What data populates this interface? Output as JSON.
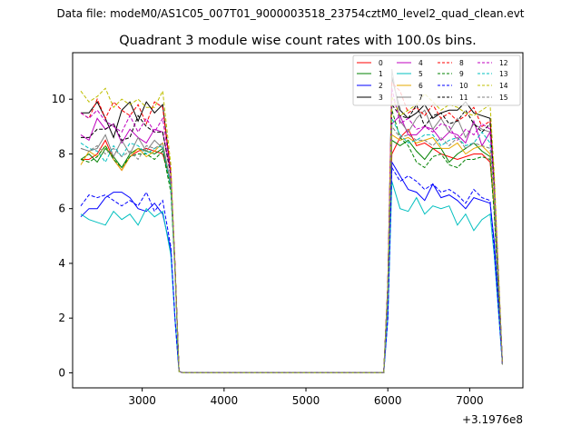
{
  "figure": {
    "suptitle": "Data file: modeM0/AS1C05_007T01_9000003518_23754cztM0_level2_quad_clean.evt",
    "title": "Quadrant 3 module wise count rates with 100.0s bins.",
    "x_offset_label": "+3.1976e8"
  },
  "chart_data": {
    "type": "line",
    "title": "Quadrant 3 module wise count rates with 100.0s bins.",
    "xlabel": "",
    "ylabel": "",
    "x_offset": 319760000,
    "xlim": [
      2150,
      7650
    ],
    "ylim": [
      -0.55,
      11.7
    ],
    "xticks": [
      3000,
      4000,
      5000,
      6000,
      7000
    ],
    "yticks": [
      0,
      2,
      4,
      6,
      8,
      10
    ],
    "grid": false,
    "legend": {
      "position": "top-right",
      "columns": 4
    },
    "x": [
      2250,
      2350,
      2450,
      2550,
      2650,
      2750,
      2850,
      2950,
      3050,
      3150,
      3250,
      3350,
      3400,
      3450,
      3500,
      5950,
      6000,
      6050,
      6150,
      6250,
      6350,
      6450,
      6550,
      6650,
      6750,
      6850,
      6950,
      7050,
      7150,
      7250,
      7300,
      7400
    ],
    "series": [
      {
        "name": "0",
        "color": "#ff0000",
        "dash": "solid",
        "values": [
          7.8,
          7.8,
          8.0,
          8.5,
          7.8,
          7.4,
          7.9,
          8.1,
          8.2,
          8.1,
          8.0,
          7.0,
          4.0,
          0.05,
          0.0,
          0.0,
          3.0,
          8.0,
          8.6,
          8.9,
          8.3,
          8.4,
          8.2,
          8.0,
          7.9,
          7.8,
          7.9,
          8.0,
          8.0,
          7.7,
          6.0,
          0.3
        ]
      },
      {
        "name": "1",
        "color": "#008000",
        "dash": "solid",
        "values": [
          7.8,
          8.0,
          7.7,
          8.2,
          7.9,
          7.5,
          8.0,
          8.2,
          8.1,
          8.0,
          8.2,
          6.8,
          4.0,
          0.05,
          0.0,
          0.0,
          3.0,
          8.5,
          8.3,
          8.5,
          8.1,
          7.8,
          8.2,
          8.2,
          7.7,
          8.0,
          8.2,
          8.4,
          8.1,
          7.9,
          6.0,
          0.3
        ]
      },
      {
        "name": "2",
        "color": "#0000ff",
        "dash": "solid",
        "values": [
          5.7,
          6.0,
          6.0,
          6.4,
          6.6,
          6.6,
          6.4,
          6.0,
          5.9,
          6.2,
          5.8,
          4.5,
          2.0,
          0.05,
          0.0,
          0.0,
          2.0,
          7.7,
          7.2,
          6.7,
          6.6,
          6.3,
          6.9,
          6.4,
          6.5,
          6.3,
          6.0,
          6.4,
          6.3,
          6.2,
          4.8,
          0.3
        ]
      },
      {
        "name": "3",
        "color": "#000000",
        "dash": "solid",
        "values": [
          9.5,
          9.5,
          9.9,
          9.3,
          8.6,
          9.6,
          9.9,
          9.2,
          9.9,
          9.5,
          9.8,
          7.3,
          4.0,
          0.05,
          0.0,
          0.0,
          3.2,
          10.8,
          9.6,
          9.3,
          9.5,
          9.8,
          9.3,
          9.5,
          9.6,
          9.6,
          9.9,
          9.5,
          9.4,
          9.3,
          7.0,
          0.3
        ]
      },
      {
        "name": "4",
        "color": "#bf00bf",
        "dash": "solid",
        "values": [
          8.7,
          8.5,
          9.3,
          8.9,
          9.1,
          8.4,
          8.9,
          8.6,
          8.4,
          8.9,
          8.8,
          7.3,
          3.8,
          0.05,
          0.0,
          0.0,
          3.0,
          9.1,
          9.4,
          8.7,
          8.7,
          9.0,
          8.9,
          8.5,
          8.8,
          8.7,
          8.4,
          9.2,
          8.3,
          8.8,
          6.8,
          0.3
        ]
      },
      {
        "name": "5",
        "color": "#00bfbf",
        "dash": "solid",
        "values": [
          5.8,
          5.6,
          5.5,
          5.4,
          5.9,
          5.6,
          5.8,
          5.4,
          6.0,
          5.7,
          5.9,
          4.3,
          2.0,
          0.05,
          0.0,
          0.0,
          2.0,
          7.0,
          6.0,
          5.9,
          6.4,
          5.8,
          6.1,
          6.0,
          6.1,
          5.4,
          5.8,
          5.2,
          5.6,
          5.8,
          4.3,
          0.3
        ]
      },
      {
        "name": "6",
        "color": "#e6a800",
        "dash": "solid",
        "values": [
          7.6,
          8.1,
          7.9,
          8.3,
          7.8,
          7.4,
          7.9,
          8.2,
          7.9,
          8.1,
          8.4,
          6.9,
          3.8,
          0.05,
          0.0,
          0.0,
          3.0,
          8.7,
          8.5,
          8.6,
          8.4,
          8.5,
          8.6,
          8.2,
          8.2,
          8.4,
          8.0,
          8.2,
          8.3,
          8.0,
          6.1,
          0.3
        ]
      },
      {
        "name": "7",
        "color": "#808080",
        "dash": "solid",
        "values": [
          8.2,
          8.1,
          8.2,
          8.7,
          7.9,
          8.5,
          8.0,
          8.6,
          8.1,
          8.5,
          8.2,
          7.0,
          3.9,
          0.05,
          0.0,
          0.0,
          3.0,
          11.1,
          9.2,
          8.8,
          9.3,
          9.6,
          8.9,
          9.3,
          8.8,
          9.3,
          8.6,
          9.1,
          8.9,
          8.8,
          6.8,
          0.3
        ]
      },
      {
        "name": "8",
        "color": "#ff0000",
        "dash": "dashed",
        "values": [
          9.5,
          9.3,
          10.0,
          9.3,
          9.9,
          9.6,
          9.4,
          9.8,
          9.1,
          9.9,
          9.7,
          7.3,
          4.0,
          0.05,
          0.0,
          0.0,
          3.2,
          10.6,
          10.3,
          9.5,
          9.7,
          9.4,
          9.8,
          9.3,
          9.5,
          9.2,
          9.4,
          9.7,
          9.0,
          9.2,
          6.8,
          0.3
        ]
      },
      {
        "name": "9",
        "color": "#008000",
        "dash": "dashed",
        "values": [
          7.8,
          7.7,
          7.9,
          8.3,
          7.8,
          7.5,
          7.9,
          8.0,
          8.0,
          7.8,
          8.1,
          6.6,
          3.8,
          0.05,
          0.0,
          0.0,
          3.0,
          9.6,
          8.6,
          8.3,
          7.7,
          7.5,
          7.9,
          8.0,
          7.6,
          7.5,
          7.8,
          7.8,
          7.9,
          7.8,
          5.8,
          0.3
        ]
      },
      {
        "name": "10",
        "color": "#0000ff",
        "dash": "dashed",
        "values": [
          6.1,
          6.5,
          6.4,
          6.5,
          6.3,
          6.1,
          6.3,
          6.1,
          6.6,
          5.9,
          6.3,
          4.6,
          2.0,
          0.05,
          0.0,
          0.0,
          2.0,
          7.5,
          7.0,
          7.2,
          7.0,
          6.7,
          6.9,
          6.6,
          6.7,
          6.5,
          6.2,
          6.7,
          6.4,
          6.3,
          4.5,
          0.3
        ]
      },
      {
        "name": "11",
        "color": "#000000",
        "dash": "dashed",
        "values": [
          8.6,
          8.6,
          8.9,
          8.9,
          9.1,
          8.5,
          8.6,
          9.4,
          9.0,
          8.8,
          8.8,
          7.2,
          3.9,
          0.05,
          0.0,
          0.0,
          3.2,
          9.8,
          9.4,
          9.3,
          9.8,
          9.0,
          9.4,
          9.5,
          9.1,
          9.2,
          9.6,
          9.1,
          8.8,
          9.1,
          7.0,
          0.3
        ]
      },
      {
        "name": "12",
        "color": "#bf00bf",
        "dash": "dashed",
        "values": [
          9.5,
          9.3,
          9.6,
          9.2,
          9.0,
          8.8,
          9.4,
          8.8,
          9.3,
          8.8,
          9.3,
          7.3,
          4.0,
          0.05,
          0.0,
          0.0,
          3.2,
          10.4,
          9.1,
          9.3,
          8.9,
          9.0,
          8.8,
          9.1,
          9.0,
          8.5,
          8.9,
          8.7,
          9.1,
          8.9,
          6.8,
          0.3
        ]
      },
      {
        "name": "13",
        "color": "#00bfbf",
        "dash": "dashed",
        "values": [
          8.4,
          8.2,
          8.1,
          7.7,
          8.3,
          7.9,
          8.4,
          8.3,
          8.0,
          8.2,
          8.3,
          6.8,
          3.8,
          0.05,
          0.0,
          0.0,
          3.0,
          9.3,
          8.7,
          8.4,
          8.5,
          8.7,
          8.7,
          8.3,
          8.5,
          8.6,
          8.3,
          8.4,
          8.8,
          8.4,
          6.5,
          0.3
        ]
      },
      {
        "name": "14",
        "color": "#bfbf00",
        "dash": "dashed",
        "values": [
          10.3,
          9.9,
          10.1,
          10.4,
          9.7,
          10.0,
          9.8,
          10.0,
          9.7,
          9.7,
          10.3,
          7.6,
          4.0,
          0.05,
          0.0,
          0.0,
          3.2,
          10.1,
          9.4,
          9.6,
          9.8,
          10.2,
          9.9,
          9.6,
          9.8,
          9.7,
          9.5,
          9.4,
          9.6,
          9.8,
          7.3,
          0.3
        ]
      },
      {
        "name": "15",
        "color": "#808080",
        "dash": "dashed",
        "values": [
          8.2,
          8.1,
          8.3,
          8.0,
          8.2,
          7.9,
          8.1,
          7.8,
          8.3,
          8.2,
          8.4,
          6.9,
          3.8,
          0.05,
          0.0,
          0.0,
          3.0,
          9.0,
          8.6,
          8.7,
          8.5,
          8.5,
          8.3,
          8.6,
          8.3,
          8.6,
          8.2,
          8.4,
          8.3,
          8.2,
          6.5,
          0.3
        ]
      }
    ]
  }
}
